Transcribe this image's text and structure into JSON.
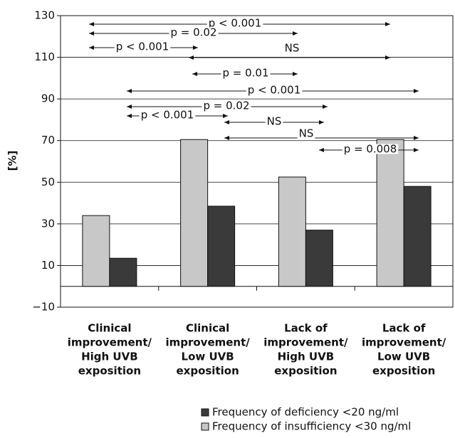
{
  "chart_data": {
    "type": "bar",
    "y_label": "[%]",
    "categories": [
      [
        "Clinical",
        "improvement/",
        "High UVB",
        "exposition"
      ],
      [
        "Clinical",
        "improvement/",
        "Low UVB",
        "exposition"
      ],
      [
        "Lack of",
        "improvement/",
        "High UVB",
        "exposition"
      ],
      [
        "Lack of",
        "improvement/",
        "Low UVB",
        "exposition"
      ]
    ],
    "series": [
      {
        "name": "Frequency of insufficiency <30 ng/ml",
        "color": "#c8c8c8",
        "values": [
          34,
          70.5,
          52.5,
          70.5
        ]
      },
      {
        "name": "Frequency of deficiency <20 ng/ml",
        "color": "#3a3a3a",
        "values": [
          13.5,
          38.5,
          27,
          48
        ]
      }
    ],
    "ylim": [
      -10,
      130
    ],
    "yticks": [
      {
        "value": -10,
        "label": "−10"
      },
      10,
      30,
      50,
      70,
      90,
      110,
      130
    ],
    "grid": true,
    "annotations": [
      "p < 0.001",
      "p = 0.02",
      "p < 0.001",
      "NS",
      "p = 0.01",
      "p < 0.001",
      "p = 0.02",
      "p < 0.001",
      "NS",
      "NS",
      "p = 0.008"
    ]
  }
}
